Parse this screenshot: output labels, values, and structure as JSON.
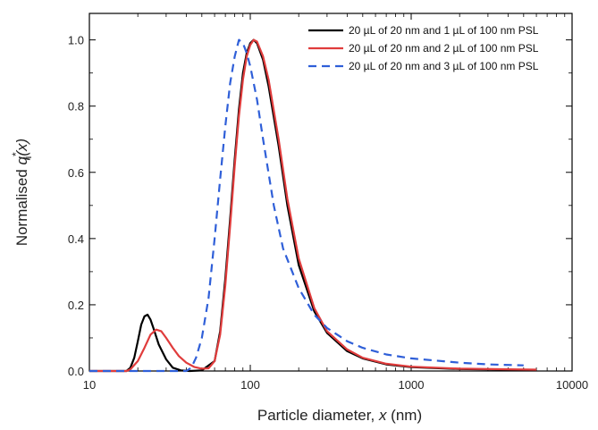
{
  "chart_data": {
    "type": "line",
    "x_scale": "log",
    "xlim": [
      10,
      10000
    ],
    "ylim": [
      0.0,
      1.08
    ],
    "x_ticks": [
      10,
      100,
      1000,
      10000
    ],
    "x_tick_labels": [
      "10",
      "100",
      "1000",
      "10000"
    ],
    "y_ticks": [
      0.0,
      0.2,
      0.4,
      0.6,
      0.8,
      1.0
    ],
    "y_tick_labels": [
      "0.0",
      "0.2",
      "0.4",
      "0.6",
      "0.8",
      "1.0"
    ],
    "xlabel": {
      "prefix": "Particle diameter, ",
      "var": "x",
      "suffix": " (nm)"
    },
    "ylabel": {
      "prefix": "Normalised ",
      "var": "q",
      "sup": "*",
      "sub": "i",
      "arg": "(x)"
    },
    "grid": false,
    "legend_position": "top-right",
    "series": [
      {
        "name": "20 µL of 20 nm and 1 µL of 100 nm PSL",
        "color": "#000000",
        "dash": "solid",
        "points": [
          [
            10,
            0
          ],
          [
            17,
            0
          ],
          [
            18,
            0.01
          ],
          [
            19,
            0.04
          ],
          [
            20,
            0.09
          ],
          [
            21,
            0.14
          ],
          [
            22,
            0.165
          ],
          [
            23,
            0.17
          ],
          [
            24,
            0.155
          ],
          [
            25,
            0.13
          ],
          [
            27,
            0.08
          ],
          [
            30,
            0.035
          ],
          [
            33,
            0.01
          ],
          [
            37,
            0.002
          ],
          [
            42,
            0
          ],
          [
            50,
            0.002
          ],
          [
            60,
            0.03
          ],
          [
            65,
            0.12
          ],
          [
            70,
            0.28
          ],
          [
            75,
            0.46
          ],
          [
            80,
            0.64
          ],
          [
            85,
            0.79
          ],
          [
            90,
            0.9
          ],
          [
            95,
            0.96
          ],
          [
            100,
            0.99
          ],
          [
            105,
            1.0
          ],
          [
            110,
            0.99
          ],
          [
            120,
            0.94
          ],
          [
            130,
            0.86
          ],
          [
            150,
            0.68
          ],
          [
            170,
            0.5
          ],
          [
            200,
            0.32
          ],
          [
            250,
            0.18
          ],
          [
            300,
            0.115
          ],
          [
            400,
            0.06
          ],
          [
            500,
            0.038
          ],
          [
            700,
            0.02
          ],
          [
            1000,
            0.012
          ],
          [
            2000,
            0.006
          ],
          [
            4000,
            0.004
          ],
          [
            6000,
            0.003
          ]
        ]
      },
      {
        "name": "20 µL of 20 nm and 2 µL of 100 nm PSL",
        "color": "#e03c3c",
        "dash": "solid",
        "points": [
          [
            10,
            0
          ],
          [
            17,
            0
          ],
          [
            18,
            0.005
          ],
          [
            20,
            0.03
          ],
          [
            22,
            0.07
          ],
          [
            24,
            0.11
          ],
          [
            26,
            0.125
          ],
          [
            28,
            0.12
          ],
          [
            30,
            0.1
          ],
          [
            33,
            0.07
          ],
          [
            36,
            0.045
          ],
          [
            40,
            0.025
          ],
          [
            45,
            0.012
          ],
          [
            50,
            0.007
          ],
          [
            55,
            0.008
          ],
          [
            60,
            0.03
          ],
          [
            65,
            0.11
          ],
          [
            70,
            0.26
          ],
          [
            75,
            0.44
          ],
          [
            80,
            0.62
          ],
          [
            85,
            0.77
          ],
          [
            90,
            0.88
          ],
          [
            95,
            0.95
          ],
          [
            100,
            0.985
          ],
          [
            105,
            1.0
          ],
          [
            110,
            0.995
          ],
          [
            120,
            0.95
          ],
          [
            130,
            0.88
          ],
          [
            150,
            0.7
          ],
          [
            170,
            0.52
          ],
          [
            200,
            0.34
          ],
          [
            250,
            0.19
          ],
          [
            300,
            0.12
          ],
          [
            400,
            0.065
          ],
          [
            500,
            0.04
          ],
          [
            700,
            0.022
          ],
          [
            1000,
            0.013
          ],
          [
            2000,
            0.007
          ],
          [
            4000,
            0.005
          ],
          [
            6000,
            0.004
          ]
        ]
      },
      {
        "name": "20 µL of 20 nm and 3 µL of 100 nm PSL",
        "color": "#2f5fd8",
        "dash": "dashed",
        "points": [
          [
            10,
            0
          ],
          [
            40,
            0
          ],
          [
            43,
            0.01
          ],
          [
            46,
            0.04
          ],
          [
            50,
            0.1
          ],
          [
            55,
            0.22
          ],
          [
            60,
            0.4
          ],
          [
            65,
            0.58
          ],
          [
            70,
            0.74
          ],
          [
            75,
            0.87
          ],
          [
            80,
            0.95
          ],
          [
            85,
            1.0
          ],
          [
            90,
            0.99
          ],
          [
            95,
            0.96
          ],
          [
            100,
            0.92
          ],
          [
            110,
            0.82
          ],
          [
            120,
            0.7
          ],
          [
            140,
            0.5
          ],
          [
            160,
            0.37
          ],
          [
            200,
            0.25
          ],
          [
            250,
            0.17
          ],
          [
            300,
            0.13
          ],
          [
            400,
            0.09
          ],
          [
            500,
            0.07
          ],
          [
            700,
            0.05
          ],
          [
            1000,
            0.038
          ],
          [
            2000,
            0.025
          ],
          [
            3000,
            0.02
          ],
          [
            5000,
            0.017
          ]
        ]
      }
    ]
  }
}
